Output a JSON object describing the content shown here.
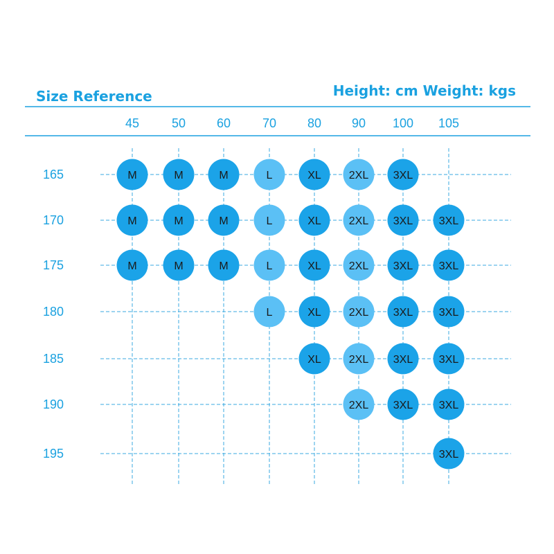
{
  "chart_data": {
    "type": "table",
    "title": "Size Reference",
    "units": "Height: cm Weight: kgs",
    "x": [
      45,
      50,
      60,
      70,
      80,
      90,
      100,
      105
    ],
    "y": [
      165,
      170,
      175,
      180,
      185,
      190,
      195
    ],
    "cells": [
      {
        "height": 165,
        "weight": 45,
        "size": "M"
      },
      {
        "height": 165,
        "weight": 50,
        "size": "M"
      },
      {
        "height": 165,
        "weight": 60,
        "size": "M"
      },
      {
        "height": 165,
        "weight": 70,
        "size": "L"
      },
      {
        "height": 165,
        "weight": 80,
        "size": "XL"
      },
      {
        "height": 165,
        "weight": 90,
        "size": "2XL"
      },
      {
        "height": 165,
        "weight": 100,
        "size": "3XL"
      },
      {
        "height": 170,
        "weight": 45,
        "size": "M"
      },
      {
        "height": 170,
        "weight": 50,
        "size": "M"
      },
      {
        "height": 170,
        "weight": 60,
        "size": "M"
      },
      {
        "height": 170,
        "weight": 70,
        "size": "L"
      },
      {
        "height": 170,
        "weight": 80,
        "size": "XL"
      },
      {
        "height": 170,
        "weight": 90,
        "size": "2XL"
      },
      {
        "height": 170,
        "weight": 100,
        "size": "3XL"
      },
      {
        "height": 170,
        "weight": 105,
        "size": "3XL"
      },
      {
        "height": 175,
        "weight": 45,
        "size": "M"
      },
      {
        "height": 175,
        "weight": 50,
        "size": "M"
      },
      {
        "height": 175,
        "weight": 60,
        "size": "M"
      },
      {
        "height": 175,
        "weight": 70,
        "size": "L"
      },
      {
        "height": 175,
        "weight": 80,
        "size": "XL"
      },
      {
        "height": 175,
        "weight": 90,
        "size": "2XL"
      },
      {
        "height": 175,
        "weight": 100,
        "size": "3XL"
      },
      {
        "height": 175,
        "weight": 105,
        "size": "3XL"
      },
      {
        "height": 180,
        "weight": 70,
        "size": "L"
      },
      {
        "height": 180,
        "weight": 80,
        "size": "XL"
      },
      {
        "height": 180,
        "weight": 90,
        "size": "2XL"
      },
      {
        "height": 180,
        "weight": 100,
        "size": "3XL"
      },
      {
        "height": 180,
        "weight": 105,
        "size": "3XL"
      },
      {
        "height": 185,
        "weight": 80,
        "size": "XL"
      },
      {
        "height": 185,
        "weight": 90,
        "size": "2XL"
      },
      {
        "height": 185,
        "weight": 100,
        "size": "3XL"
      },
      {
        "height": 185,
        "weight": 105,
        "size": "3XL"
      },
      {
        "height": 190,
        "weight": 90,
        "size": "2XL"
      },
      {
        "height": 190,
        "weight": 100,
        "size": "3XL"
      },
      {
        "height": 190,
        "weight": 105,
        "size": "3XL"
      },
      {
        "height": 195,
        "weight": 105,
        "size": "3XL"
      }
    ],
    "size_colors": {
      "M": "#1ba3e8",
      "L": "#5bc0f5",
      "XL": "#1ba3e8",
      "2XL": "#5bc0f5",
      "3XL": "#1ba3e8"
    },
    "grid": true,
    "grid_style": "dashed"
  },
  "colors": {
    "accent": "#1aa1e0",
    "grid": "#3aa8e0",
    "axis_text": "#1aa1e0",
    "cell_text": "#1a1a1a"
  }
}
